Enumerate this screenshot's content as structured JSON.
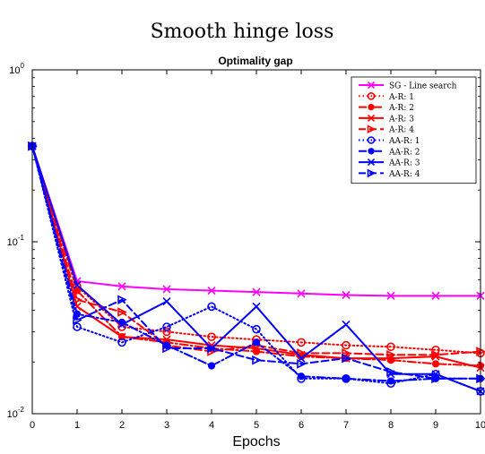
{
  "figure_title": "Smooth hinge loss",
  "chart_data": {
    "type": "line",
    "title": "Optimality gap",
    "xlabel": "Epochs",
    "ylabel": "",
    "x": [
      0,
      1,
      2,
      3,
      4,
      5,
      6,
      7,
      8,
      9,
      10
    ],
    "xlim": [
      0,
      10
    ],
    "ylim": [
      0.01,
      1
    ],
    "yscale": "log",
    "x_ticks": [
      "0",
      "1",
      "2",
      "3",
      "4",
      "5",
      "6",
      "7",
      "8",
      "9",
      "10"
    ],
    "y_ticks": [
      {
        "value": 1,
        "base": "10",
        "exp": "0"
      },
      {
        "value": 0.1,
        "base": "10",
        "exp": "-1"
      },
      {
        "value": 0.01,
        "base": "10",
        "exp": "-2"
      }
    ],
    "grid": false,
    "legend_position": "top-right",
    "series": [
      {
        "name": "SG - Line search",
        "color": "#ff00ff",
        "dash": "solid",
        "marker": "x",
        "values": [
          0.36,
          0.059,
          0.055,
          0.053,
          0.052,
          0.051,
          0.05,
          0.049,
          0.0485,
          0.0485,
          0.0485
        ]
      },
      {
        "name": "A-R: 1",
        "color": "#ff0000",
        "dash": "dotted",
        "marker": "circle",
        "values": [
          0.36,
          0.055,
          0.032,
          0.03,
          0.028,
          0.027,
          0.026,
          0.025,
          0.0245,
          0.0235,
          0.0225
        ]
      },
      {
        "name": "A-R: 2",
        "color": "#ff0000",
        "dash": "dashdot",
        "marker": "dot",
        "values": [
          0.36,
          0.052,
          0.028,
          0.026,
          0.024,
          0.023,
          0.0215,
          0.021,
          0.0205,
          0.0195,
          0.019
        ]
      },
      {
        "name": "A-R: 3",
        "color": "#ff0000",
        "dash": "solid",
        "marker": "x",
        "values": [
          0.36,
          0.042,
          0.028,
          0.027,
          0.025,
          0.024,
          0.022,
          0.021,
          0.021,
          0.0215,
          0.0185
        ]
      },
      {
        "name": "A-R: 4",
        "color": "#ff0000",
        "dash": "dashed",
        "marker": "triangle",
        "values": [
          0.36,
          0.046,
          0.039,
          0.025,
          0.023,
          0.025,
          0.0225,
          0.0225,
          0.022,
          0.022,
          0.023
        ]
      },
      {
        "name": "AA-R: 1",
        "color": "#0000ff",
        "dash": "dotted",
        "marker": "circle",
        "values": [
          0.36,
          0.032,
          0.026,
          0.032,
          0.042,
          0.031,
          0.016,
          0.016,
          0.015,
          0.017,
          0.0135
        ]
      },
      {
        "name": "AA-R: 2",
        "color": "#0000ff",
        "dash": "dashdot",
        "marker": "dot",
        "values": [
          0.36,
          0.038,
          0.034,
          0.025,
          0.019,
          0.026,
          0.0165,
          0.016,
          0.0155,
          0.016,
          0.016
        ]
      },
      {
        "name": "AA-R: 3",
        "color": "#0000ff",
        "dash": "solid",
        "marker": "x",
        "values": [
          0.36,
          0.056,
          0.033,
          0.045,
          0.024,
          0.042,
          0.021,
          0.033,
          0.017,
          0.017,
          0.0135
        ]
      },
      {
        "name": "AA-R: 4",
        "color": "#0000ff",
        "dash": "dashed",
        "marker": "triangle",
        "values": [
          0.36,
          0.035,
          0.046,
          0.024,
          0.024,
          0.0205,
          0.0195,
          0.021,
          0.0175,
          0.016,
          0.016
        ]
      }
    ]
  }
}
